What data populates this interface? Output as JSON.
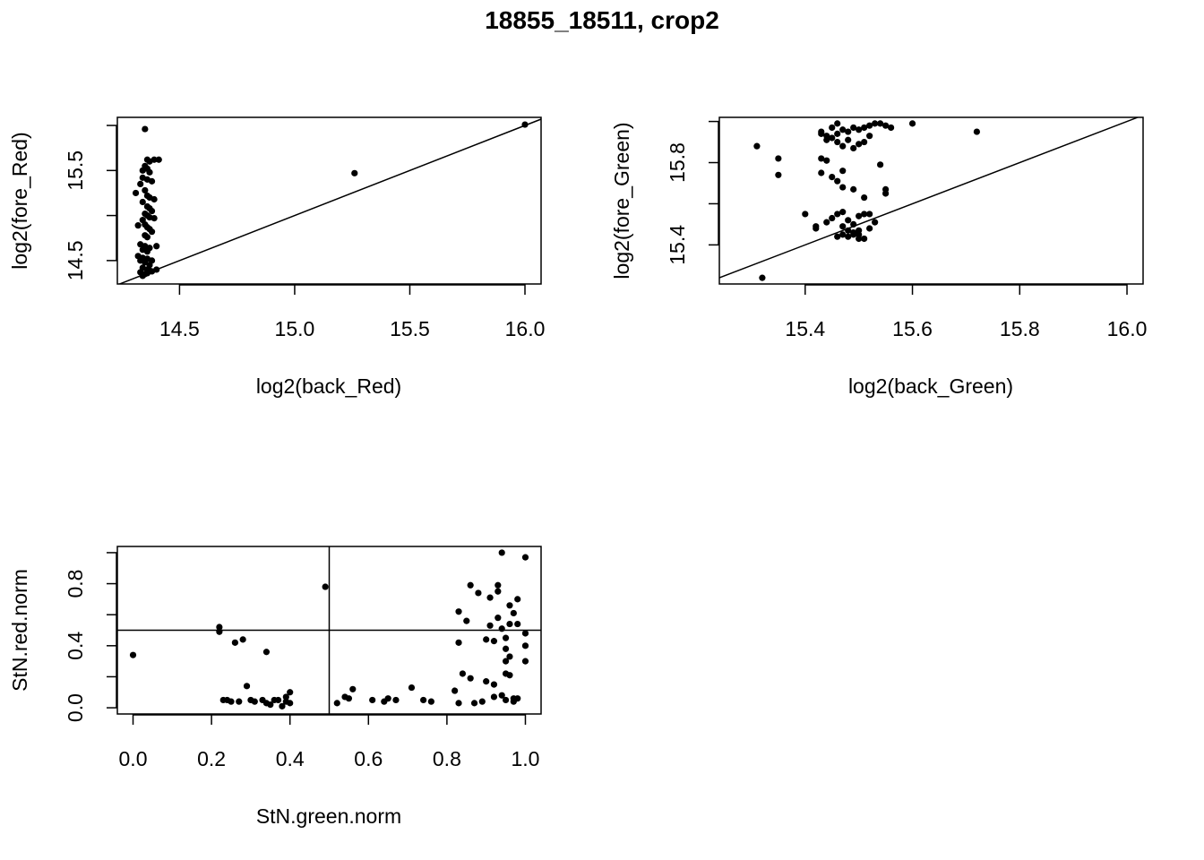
{
  "figure_title": "18855_18511, crop2",
  "colors": {
    "background": "#ffffff",
    "ink": "#000000"
  },
  "chart_data": [
    {
      "type": "scatter",
      "id": "red",
      "title": "",
      "xlabel": "log2(back_Red)",
      "ylabel": "log2(fore_Red)",
      "xlim": [
        14.23,
        16.07
      ],
      "ylim": [
        14.24,
        16.09
      ],
      "xticks": [
        14.5,
        15.0,
        15.5,
        16.0
      ],
      "xtick_labels": [
        "14.5",
        "15.0",
        "15.5",
        "16.0"
      ],
      "yticks": [
        14.5,
        15.0,
        15.5,
        16.0
      ],
      "ytick_labels": [
        "14.5",
        "",
        "15.5",
        ""
      ],
      "reference_lines": [
        {
          "kind": "diagonal",
          "intercept": 0,
          "slope": 1
        }
      ],
      "points": [
        [
          14.35,
          15.96
        ],
        [
          14.36,
          15.62
        ],
        [
          14.37,
          15.6
        ],
        [
          14.39,
          15.62
        ],
        [
          14.41,
          15.62
        ],
        [
          14.34,
          15.5
        ],
        [
          14.35,
          15.55
        ],
        [
          14.36,
          15.52
        ],
        [
          14.37,
          15.48
        ],
        [
          14.34,
          15.42
        ],
        [
          14.36,
          15.4
        ],
        [
          14.38,
          15.38
        ],
        [
          14.33,
          15.35
        ],
        [
          14.31,
          15.25
        ],
        [
          14.35,
          15.28
        ],
        [
          14.36,
          15.22
        ],
        [
          14.37,
          15.2
        ],
        [
          14.39,
          15.18
        ],
        [
          14.34,
          15.15
        ],
        [
          14.36,
          15.1
        ],
        [
          14.37,
          15.08
        ],
        [
          14.38,
          15.05
        ],
        [
          14.35,
          15.02
        ],
        [
          14.36,
          15.0
        ],
        [
          14.37,
          14.98
        ],
        [
          14.39,
          14.97
        ],
        [
          14.34,
          14.95
        ],
        [
          14.32,
          14.89
        ],
        [
          14.35,
          14.9
        ],
        [
          14.36,
          14.87
        ],
        [
          14.37,
          14.85
        ],
        [
          14.38,
          14.82
        ],
        [
          14.35,
          14.78
        ],
        [
          14.36,
          14.76
        ],
        [
          14.33,
          14.68
        ],
        [
          14.35,
          14.66
        ],
        [
          14.37,
          14.64
        ],
        [
          14.4,
          14.66
        ],
        [
          14.34,
          14.62
        ],
        [
          14.36,
          14.6
        ],
        [
          14.32,
          14.55
        ],
        [
          14.34,
          14.53
        ],
        [
          14.36,
          14.52
        ],
        [
          14.38,
          14.5
        ],
        [
          14.33,
          14.5
        ],
        [
          14.35,
          14.48
        ],
        [
          14.37,
          14.45
        ],
        [
          14.34,
          14.42
        ],
        [
          14.36,
          14.4
        ],
        [
          14.38,
          14.38
        ],
        [
          14.4,
          14.4
        ],
        [
          14.33,
          14.37
        ],
        [
          14.35,
          14.35
        ],
        [
          14.34,
          14.33
        ],
        [
          14.36,
          14.36
        ],
        [
          14.37,
          14.39
        ],
        [
          15.26,
          15.47
        ],
        [
          16.0,
          16.01
        ]
      ]
    },
    {
      "type": "scatter",
      "id": "green",
      "title": "",
      "xlabel": "log2(back_Green)",
      "ylabel": "log2(fore_Green)",
      "xlim": [
        15.24,
        16.03
      ],
      "ylim": [
        15.21,
        16.02
      ],
      "xticks": [
        15.4,
        15.6,
        15.8,
        16.0
      ],
      "xtick_labels": [
        "15.4",
        "15.6",
        "15.8",
        "16.0"
      ],
      "yticks": [
        15.4,
        15.6,
        15.8,
        16.0
      ],
      "ytick_labels": [
        "15.4",
        "",
        "15.8",
        ""
      ],
      "reference_lines": [
        {
          "kind": "diagonal",
          "intercept": 0,
          "slope": 1
        }
      ],
      "points": [
        [
          15.31,
          15.88
        ],
        [
          15.32,
          15.24
        ],
        [
          15.35,
          15.82
        ],
        [
          15.35,
          15.74
        ],
        [
          15.4,
          15.55
        ],
        [
          15.42,
          15.49
        ],
        [
          15.42,
          15.48
        ],
        [
          15.43,
          15.95
        ],
        [
          15.43,
          15.94
        ],
        [
          15.44,
          15.93
        ],
        [
          15.45,
          15.97
        ],
        [
          15.46,
          15.99
        ],
        [
          15.44,
          15.91
        ],
        [
          15.45,
          15.92
        ],
        [
          15.46,
          15.94
        ],
        [
          15.47,
          15.96
        ],
        [
          15.48,
          15.95
        ],
        [
          15.49,
          15.97
        ],
        [
          15.5,
          15.96
        ],
        [
          15.51,
          15.97
        ],
        [
          15.52,
          15.98
        ],
        [
          15.53,
          15.99
        ],
        [
          15.54,
          15.99
        ],
        [
          15.55,
          15.98
        ],
        [
          15.56,
          15.97
        ],
        [
          15.6,
          15.99
        ],
        [
          15.72,
          15.95
        ],
        [
          15.46,
          15.9
        ],
        [
          15.47,
          15.88
        ],
        [
          15.48,
          15.91
        ],
        [
          15.5,
          15.89
        ],
        [
          15.51,
          15.9
        ],
        [
          15.49,
          15.87
        ],
        [
          15.52,
          15.93
        ],
        [
          15.43,
          15.82
        ],
        [
          15.44,
          15.81
        ],
        [
          15.47,
          15.76
        ],
        [
          15.43,
          15.75
        ],
        [
          15.45,
          15.73
        ],
        [
          15.46,
          15.71
        ],
        [
          15.47,
          15.68
        ],
        [
          15.49,
          15.67
        ],
        [
          15.51,
          15.63
        ],
        [
          15.54,
          15.79
        ],
        [
          15.55,
          15.67
        ],
        [
          15.55,
          15.65
        ],
        [
          15.45,
          15.53
        ],
        [
          15.46,
          15.55
        ],
        [
          15.47,
          15.56
        ],
        [
          15.48,
          15.52
        ],
        [
          15.49,
          15.5
        ],
        [
          15.5,
          15.54
        ],
        [
          15.51,
          15.55
        ],
        [
          15.52,
          15.55
        ],
        [
          15.44,
          15.51
        ],
        [
          15.47,
          15.49
        ],
        [
          15.48,
          15.47
        ],
        [
          15.49,
          15.46
        ],
        [
          15.5,
          15.47
        ],
        [
          15.47,
          15.45
        ],
        [
          15.48,
          15.44
        ],
        [
          15.49,
          15.45
        ],
        [
          15.5,
          15.43
        ],
        [
          15.51,
          15.43
        ],
        [
          15.52,
          15.48
        ],
        [
          15.53,
          15.51
        ],
        [
          15.46,
          15.44
        ],
        [
          15.5,
          15.45
        ]
      ]
    },
    {
      "type": "scatter",
      "id": "stn",
      "title": "",
      "xlabel": "StN.green.norm",
      "ylabel": "StN.red.norm",
      "xlim": [
        -0.04,
        1.04
      ],
      "ylim": [
        -0.04,
        1.04
      ],
      "xticks": [
        0.0,
        0.2,
        0.4,
        0.6,
        0.8,
        1.0
      ],
      "xtick_labels": [
        "0.0",
        "0.2",
        "0.4",
        "0.6",
        "0.8",
        "1.0"
      ],
      "yticks": [
        0.0,
        0.2,
        0.4,
        0.6,
        0.8,
        1.0
      ],
      "ytick_labels": [
        "0.0",
        "",
        "0.4",
        "",
        "0.8",
        ""
      ],
      "reference_lines": [
        {
          "kind": "vertical",
          "x": 0.5
        },
        {
          "kind": "horizontal",
          "y": 0.5
        }
      ],
      "points": [
        [
          0.0,
          0.34
        ],
        [
          0.22,
          0.49
        ],
        [
          0.22,
          0.52
        ],
        [
          0.26,
          0.42
        ],
        [
          0.28,
          0.44
        ],
        [
          0.34,
          0.36
        ],
        [
          0.49,
          0.78
        ],
        [
          0.23,
          0.05
        ],
        [
          0.24,
          0.05
        ],
        [
          0.25,
          0.04
        ],
        [
          0.27,
          0.04
        ],
        [
          0.29,
          0.14
        ],
        [
          0.3,
          0.05
        ],
        [
          0.31,
          0.04
        ],
        [
          0.33,
          0.05
        ],
        [
          0.34,
          0.03
        ],
        [
          0.35,
          0.02
        ],
        [
          0.36,
          0.05
        ],
        [
          0.37,
          0.05
        ],
        [
          0.38,
          0.01
        ],
        [
          0.39,
          0.04
        ],
        [
          0.39,
          0.07
        ],
        [
          0.4,
          0.1
        ],
        [
          0.4,
          0.03
        ],
        [
          0.52,
          0.03
        ],
        [
          0.54,
          0.07
        ],
        [
          0.55,
          0.06
        ],
        [
          0.56,
          0.12
        ],
        [
          0.61,
          0.05
        ],
        [
          0.64,
          0.04
        ],
        [
          0.65,
          0.06
        ],
        [
          0.67,
          0.05
        ],
        [
          0.71,
          0.13
        ],
        [
          0.74,
          0.05
        ],
        [
          0.76,
          0.04
        ],
        [
          0.82,
          0.11
        ],
        [
          0.83,
          0.03
        ],
        [
          0.83,
          0.62
        ],
        [
          0.83,
          0.42
        ],
        [
          0.84,
          0.22
        ],
        [
          0.85,
          0.56
        ],
        [
          0.86,
          0.19
        ],
        [
          0.86,
          0.79
        ],
        [
          0.87,
          0.03
        ],
        [
          0.88,
          0.74
        ],
        [
          0.89,
          0.04
        ],
        [
          0.9,
          0.44
        ],
        [
          0.9,
          0.17
        ],
        [
          0.91,
          0.71
        ],
        [
          0.91,
          0.53
        ],
        [
          0.92,
          0.07
        ],
        [
          0.92,
          0.43
        ],
        [
          0.92,
          0.15
        ],
        [
          0.93,
          0.79
        ],
        [
          0.93,
          0.58
        ],
        [
          0.93,
          0.75
        ],
        [
          0.94,
          1.0
        ],
        [
          0.94,
          0.51
        ],
        [
          0.94,
          0.08
        ],
        [
          0.95,
          0.38
        ],
        [
          0.95,
          0.22
        ],
        [
          0.95,
          0.3
        ],
        [
          0.95,
          0.05
        ],
        [
          0.96,
          0.66
        ],
        [
          0.96,
          0.54
        ],
        [
          0.96,
          0.33
        ],
        [
          0.96,
          0.21
        ],
        [
          0.97,
          0.06
        ],
        [
          0.97,
          0.61
        ],
        [
          0.97,
          0.04
        ],
        [
          0.98,
          0.7
        ],
        [
          0.98,
          0.54
        ],
        [
          0.98,
          0.06
        ],
        [
          1.0,
          0.97
        ],
        [
          1.0,
          0.48
        ],
        [
          1.0,
          0.4
        ],
        [
          1.0,
          0.3
        ],
        [
          0.95,
          0.45
        ]
      ]
    }
  ]
}
